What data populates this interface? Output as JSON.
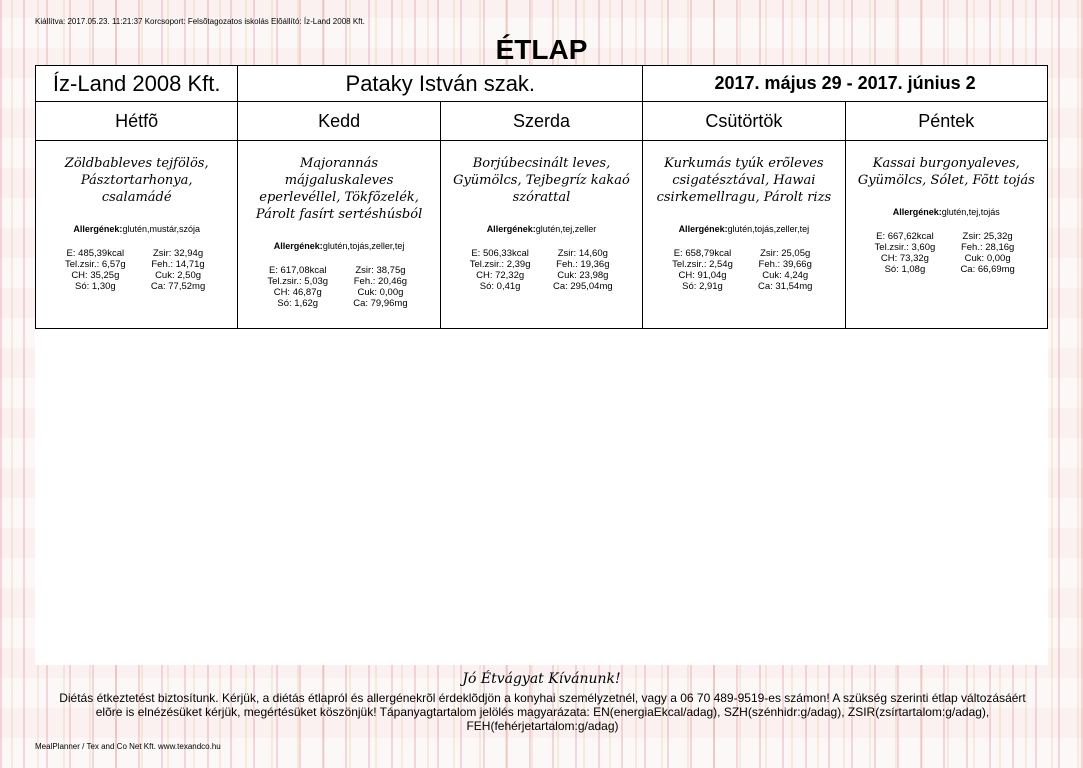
{
  "issued_line": "Kiállítva: 2017.05.23. 11:21:37 Korcsoport: Felsõtagozatos iskolás Elõállító: Íz-Land 2008 Kft.",
  "title": "ÉTLAP",
  "header": {
    "company": "Íz-Land 2008 Kft.",
    "school": "Pataky István szak.",
    "date_range": "2017. május 29 - 2017. június 2"
  },
  "allergen_label": "Allergének:",
  "days": [
    {
      "name": "Hétfõ",
      "dish": "Zöldbableves tejfölös, Pásztortarhonya, csalamádé",
      "allergens": "glutén,mustár,szója",
      "nutrition": {
        "e": "E: 485,39kcal",
        "zsir": "Zsir: 32,94g",
        "tel": "Tel.zsir.: 6,57g",
        "feh": "Feh.: 14,71g",
        "ch": "CH: 35,25g",
        "cuk": "Cuk: 2,50g",
        "so": "Só: 1,30g",
        "ca": "Ca: 77,52mg"
      }
    },
    {
      "name": "Kedd",
      "dish": "Majorannás májgaluskaleves eperlevéllel, Tökfõzelék, Párolt fasírt sertéshúsból",
      "allergens": "glutén,tojás,zeller,tej",
      "nutrition": {
        "e": "E: 617,08kcal",
        "zsir": "Zsir: 38,75g",
        "tel": "Tel.zsir.: 5,03g",
        "feh": "Feh.: 20,46g",
        "ch": "CH: 46,87g",
        "cuk": "Cuk: 0,00g",
        "so": "Só: 1,62g",
        "ca": "Ca: 79,96mg"
      }
    },
    {
      "name": "Szerda",
      "dish": "Borjúbecsinált leves, Gyümölcs, Tejbegríz kakaó szórattal",
      "allergens": "glutén,tej,zeller",
      "nutrition": {
        "e": "E: 506,33kcal",
        "zsir": "Zsir: 14,60g",
        "tel": "Tel.zsir.: 2,39g",
        "feh": "Feh.: 19,36g",
        "ch": "CH: 72,32g",
        "cuk": "Cuk: 23,98g",
        "so": "Só: 0,41g",
        "ca": "Ca: 295,04mg"
      }
    },
    {
      "name": "Csütörtök",
      "dish": "Kurkumás tyúk erõleves csigatésztával, Hawai csirkemellragu, Párolt rizs",
      "allergens": "glutén,tojás,zeller,tej",
      "nutrition": {
        "e": "E: 658,79kcal",
        "zsir": "Zsir: 25,05g",
        "tel": "Tel.zsir.: 2,54g",
        "feh": "Feh.: 39,66g",
        "ch": "CH: 91,04g",
        "cuk": "Cuk: 4,24g",
        "so": "Só: 2,91g",
        "ca": "Ca: 31,54mg"
      }
    },
    {
      "name": "Péntek",
      "dish": "Kassai burgonyaleves, Gyümölcs, Sólet, Fõtt tojás",
      "allergens": "glutén,tej,tojás",
      "nutrition": {
        "e": "E: 667,62kcal",
        "zsir": "Zsir: 25,32g",
        "tel": "Tel.zsir.: 3,60g",
        "feh": "Feh.: 28,16g",
        "ch": "CH: 73,32g",
        "cuk": "Cuk: 0,00g",
        "so": "Só: 1,08g",
        "ca": "Ca: 66,69mg"
      }
    }
  ],
  "footer": {
    "greeting": "Jó Étvágyat Kívánunk!",
    "note": "Diétás étkeztetést biztosítunk. Kérjük, a diétás étlapról és allergénekrõl érdeklõdjön a konyhai személyzetnél, vagy a 06 70 489-9519-es számon! A szükség szerinti étlap változásáért elõre is elnézésüket kérjük, megértésüket köszönjük! Tápanyagtartalom jelölés magyarázata: EN(energiaEkcal/adag), SZH(szénhidr:g/adag), ZSIR(zsírtartalom:g/adag), FEH(fehérjetartalom:g/adag)",
    "credit": "MealPlanner / Tex and Co Net Kft. www.texandco.hu"
  }
}
